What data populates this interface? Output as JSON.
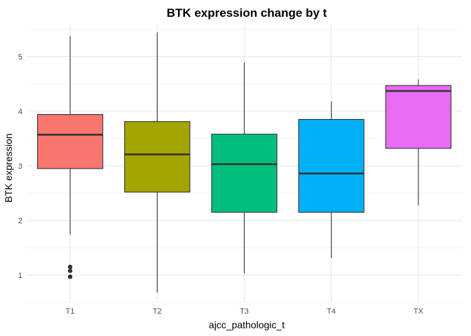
{
  "chart_data": {
    "type": "box",
    "title": "BTK expression change by t",
    "xlabel": "ajcc_pathologic_t",
    "ylabel": "BTK expression",
    "ylim": [
      0.5,
      5.6
    ],
    "yticks": [
      1,
      2,
      3,
      4,
      5
    ],
    "grid": true,
    "legend": "none",
    "categories": [
      "T1",
      "T2",
      "T3",
      "T4",
      "TX"
    ],
    "boxes": [
      {
        "category": "T1",
        "whisker_low": 1.74,
        "q1": 2.95,
        "median": 3.57,
        "q3": 3.94,
        "whisker_high": 5.37,
        "outliers": [
          1.15,
          1.08,
          0.97
        ],
        "color": "#F8766D"
      },
      {
        "category": "T2",
        "whisker_low": 0.68,
        "q1": 2.52,
        "median": 3.21,
        "q3": 3.81,
        "whisker_high": 5.44,
        "outliers": [],
        "color": "#A3A500"
      },
      {
        "category": "T3",
        "whisker_low": 1.03,
        "q1": 2.15,
        "median": 3.03,
        "q3": 3.58,
        "whisker_high": 4.89,
        "outliers": [],
        "color": "#00BF7D"
      },
      {
        "category": "T4",
        "whisker_low": 1.31,
        "q1": 2.15,
        "median": 2.86,
        "q3": 3.85,
        "whisker_high": 4.18,
        "outliers": [],
        "color": "#00B0F6"
      },
      {
        "category": "TX",
        "whisker_low": 2.28,
        "q1": 3.32,
        "median": 4.37,
        "q3": 4.47,
        "whisker_high": 4.58,
        "outliers": [],
        "color": "#E76BF3"
      }
    ]
  }
}
